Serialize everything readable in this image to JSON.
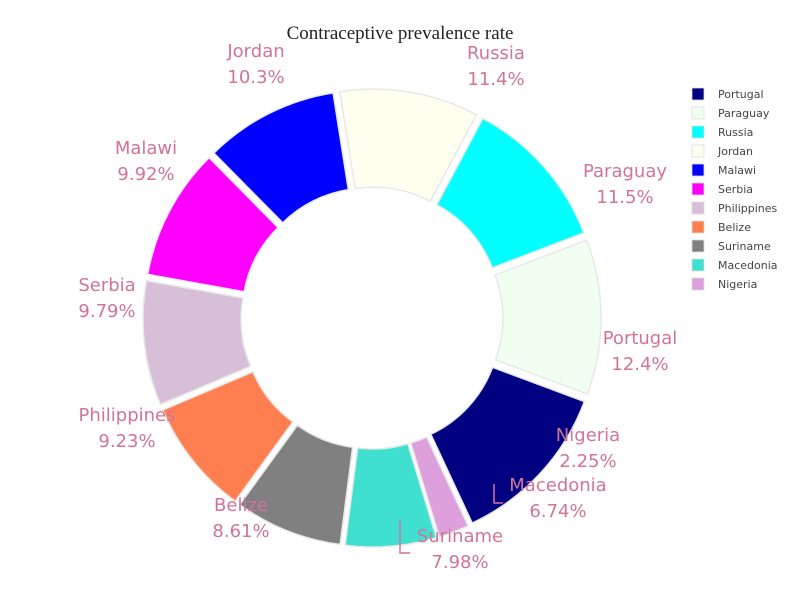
{
  "chart_data": {
    "type": "pie",
    "title": "Contraceptive prevalence rate",
    "hole": true,
    "legend_position": "top-right",
    "label_color": "#d0749a",
    "slices": [
      {
        "name": "Portugal",
        "value": 12.4,
        "label": "12.4%",
        "color": "#000080"
      },
      {
        "name": "Paraguay",
        "value": 11.5,
        "label": "11.5%",
        "color": "#f0fff0"
      },
      {
        "name": "Russia",
        "value": 11.4,
        "label": "11.4%",
        "color": "#00ffff"
      },
      {
        "name": "Jordan",
        "value": 10.3,
        "label": "10.3%",
        "color": "#fffff0"
      },
      {
        "name": "Malawi",
        "value": 9.92,
        "label": "9.92%",
        "color": "#0000ff"
      },
      {
        "name": "Serbia",
        "value": 9.79,
        "label": "9.79%",
        "color": "#ff00ff"
      },
      {
        "name": "Philippines",
        "value": 9.23,
        "label": "9.23%",
        "color": "#d8bfd8"
      },
      {
        "name": "Belize",
        "value": 8.61,
        "label": "8.61%",
        "color": "#ff7f50"
      },
      {
        "name": "Suriname",
        "value": 7.98,
        "label": "7.98%",
        "color": "#808080"
      },
      {
        "name": "Macedonia",
        "value": 6.74,
        "label": "6.74%",
        "color": "#40e0d0"
      },
      {
        "name": "Nigeria",
        "value": 2.25,
        "label": "2.25%",
        "color": "#dda0dd"
      }
    ]
  }
}
